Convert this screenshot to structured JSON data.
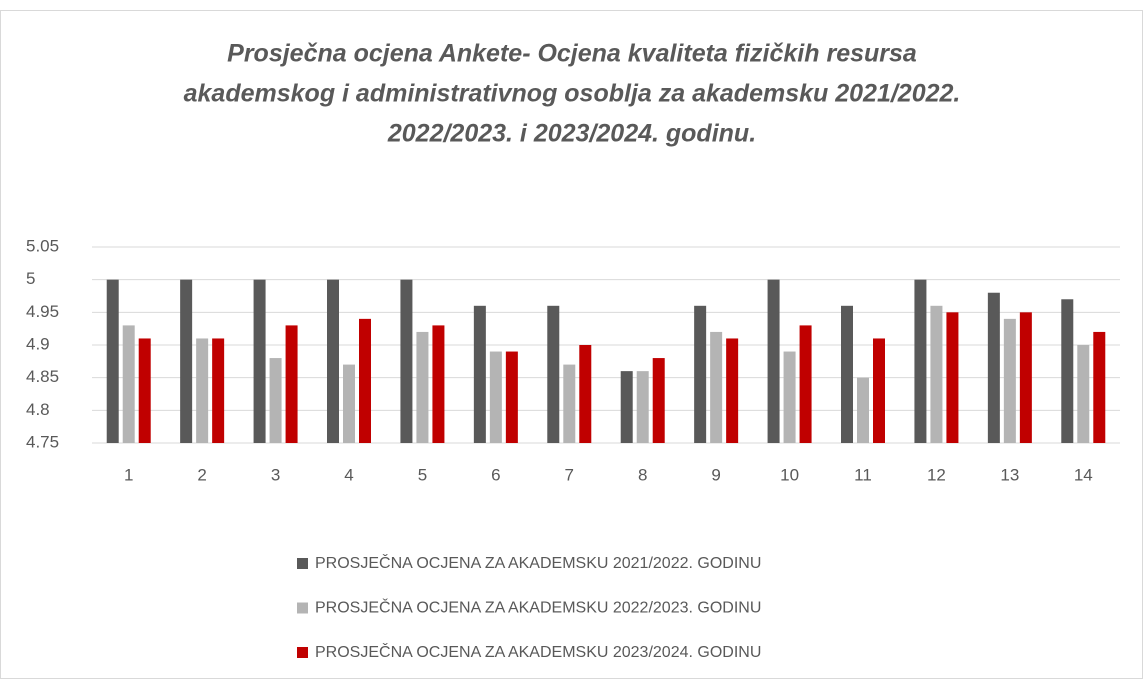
{
  "chart_data": {
    "type": "bar",
    "title": [
      "Prosječna ocjena Ankete- Ocjena kvaliteta fizičkih resursa",
      "akademskog i administrativnog osoblja za akademsku  2021/2022.",
      "2022/2023. i 2023/2024. godinu."
    ],
    "categories": [
      "1",
      "2",
      "3",
      "4",
      "5",
      "6",
      "7",
      "8",
      "9",
      "10",
      "11",
      "12",
      "13",
      "14"
    ],
    "series": [
      {
        "name": "PROSJEČNA OCJENA ZA AKADEMSKU 2021/2022. GODINU",
        "color": "#595959",
        "values": [
          5,
          5,
          5,
          5,
          5,
          4.96,
          4.96,
          4.86,
          4.96,
          5,
          4.96,
          5,
          4.98,
          4.97
        ]
      },
      {
        "name": "PROSJEČNA OCJENA ZA AKADEMSKU 2022/2023. GODINU",
        "color": "#b4b4b4",
        "values": [
          4.93,
          4.91,
          4.88,
          4.87,
          4.92,
          4.89,
          4.87,
          4.86,
          4.92,
          4.89,
          4.85,
          4.96,
          4.94,
          4.9
        ]
      },
      {
        "name": "PROSJEČNA OCJENA ZA AKADEMSKU 2023/2024. GODINU",
        "color": "#c00000",
        "values": [
          4.91,
          4.91,
          4.93,
          4.94,
          4.93,
          4.89,
          4.9,
          4.88,
          4.91,
          4.93,
          4.91,
          4.95,
          4.95,
          4.92
        ]
      }
    ],
    "ylim": [
      4.75,
      5.05
    ],
    "yticks": [
      4.75,
      4.8,
      4.85,
      4.9,
      4.95,
      5,
      5.05
    ],
    "grid": true,
    "legend": "bottom"
  }
}
